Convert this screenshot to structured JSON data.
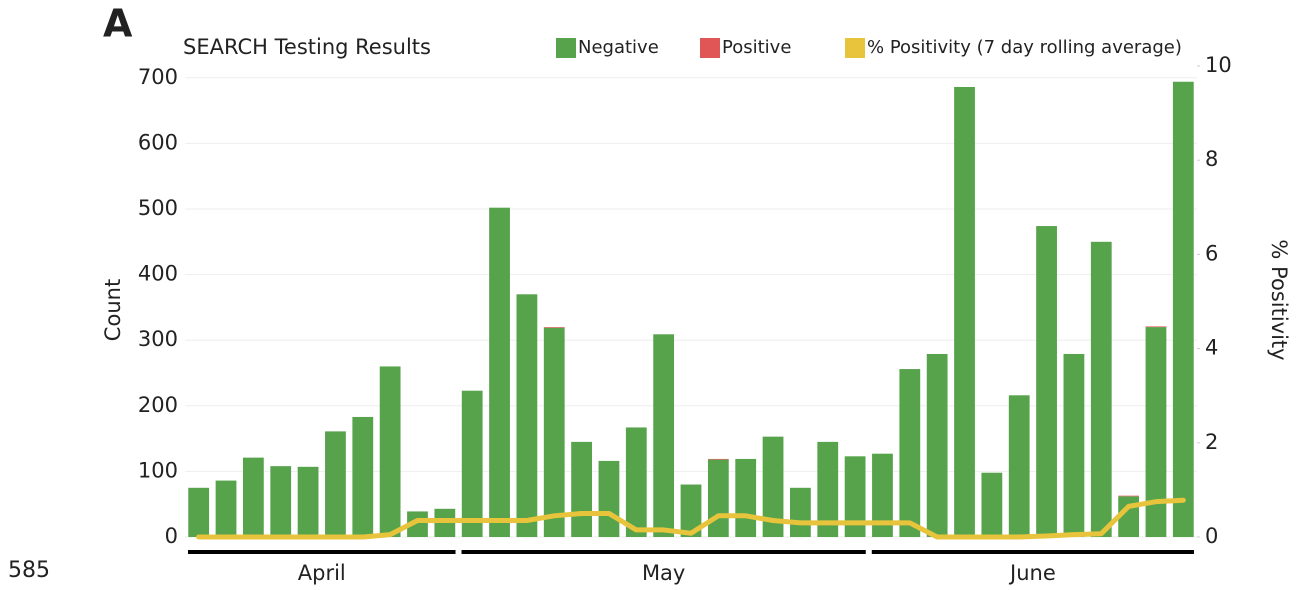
{
  "panel_label": "A",
  "annotation": "585",
  "chart_data": {
    "type": "bar",
    "stacked": true,
    "title": "SEARCH Testing Results",
    "ylabel": "Count",
    "y2label": "% Positivity",
    "categories": [
      null,
      null,
      null,
      null,
      null,
      null,
      null,
      null,
      null,
      null,
      null,
      null,
      null,
      null,
      null,
      null,
      null,
      null,
      null,
      null,
      null,
      null,
      null,
      null,
      null,
      null,
      null,
      null,
      null,
      null,
      null,
      null,
      null,
      null,
      null,
      null,
      null
    ],
    "x_groups": [
      {
        "label": "April",
        "size": 10
      },
      {
        "label": "May",
        "size": 15
      },
      {
        "label": "June",
        "size": 12
      }
    ],
    "series": [
      {
        "name": "Negative",
        "type": "bar",
        "color": "#57a34c",
        "values": [
          75,
          86,
          121,
          108,
          107,
          161,
          183,
          260,
          39,
          43,
          223,
          502,
          370,
          319,
          145,
          116,
          167,
          309,
          80,
          118,
          119,
          153,
          75,
          145,
          123,
          127,
          256,
          279,
          686,
          98,
          216,
          474,
          279,
          450,
          62,
          320,
          694
        ]
      },
      {
        "name": "Positive",
        "type": "bar",
        "color": "#e05555",
        "values": [
          0,
          0,
          0,
          0,
          0,
          0,
          0,
          0,
          0,
          0,
          0,
          0,
          0,
          1,
          0,
          0,
          0,
          0,
          0,
          1,
          0,
          0,
          0,
          0,
          0,
          0,
          0,
          0,
          0,
          0,
          0,
          0,
          0,
          0,
          1,
          1,
          0
        ]
      },
      {
        "name": "% Positivity (7 day rolling average)",
        "type": "line",
        "axis": "y2",
        "color": "#e8c43c",
        "values": [
          0,
          0,
          0,
          0,
          0,
          0,
          0,
          0.05,
          0.35,
          0.35,
          0.35,
          0.35,
          0.35,
          0.45,
          0.5,
          0.5,
          0.15,
          0.15,
          0.08,
          0.45,
          0.45,
          0.35,
          0.3,
          0.3,
          0.3,
          0.3,
          0.3,
          0,
          0,
          0,
          0,
          0.02,
          0.05,
          0.07,
          0.65,
          0.75,
          0.78
        ]
      }
    ],
    "ylim": [
      0,
      718
    ],
    "yticks": [
      0,
      100,
      200,
      300,
      400,
      500,
      600,
      700
    ],
    "y2lim": [
      0,
      10
    ],
    "y2ticks": [
      0,
      2,
      4,
      6,
      8,
      10
    ],
    "grid": true
  }
}
